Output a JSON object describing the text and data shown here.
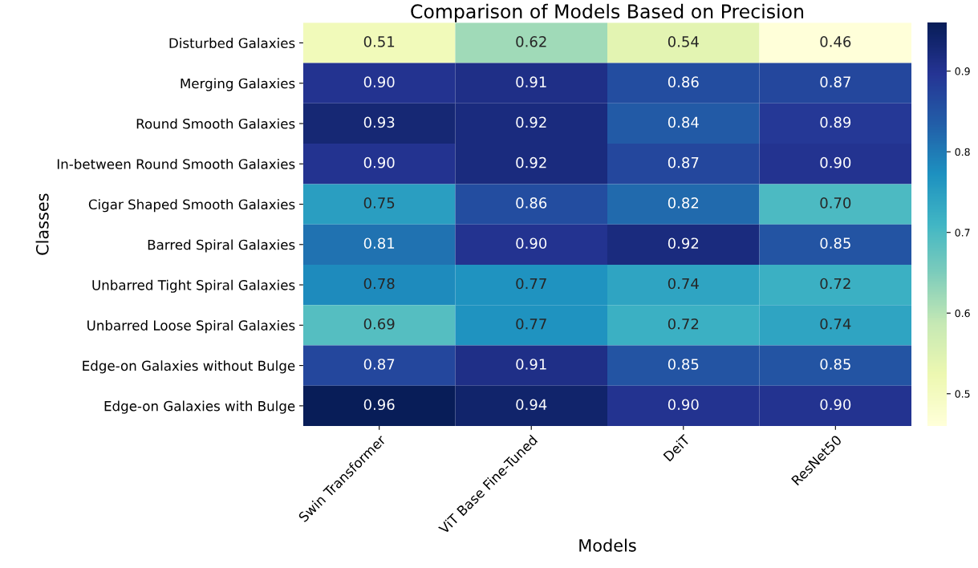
{
  "chart_data": {
    "type": "heatmap",
    "title": "Comparison of Models Based on Precision",
    "xlabel": "Models",
    "ylabel": "Classes",
    "categories": [
      "Swin Transformer",
      "ViT Base Fine-Tuned",
      "DeiT",
      "ResNet50"
    ],
    "y_categories": [
      "Disturbed Galaxies",
      "Merging Galaxies",
      "Round Smooth Galaxies",
      "In-between Round Smooth Galaxies",
      "Cigar Shaped Smooth Galaxies",
      "Barred Spiral Galaxies",
      "Unbarred Tight Spiral Galaxies",
      "Unbarred Loose Spiral Galaxies",
      "Edge-on Galaxies without Bulge",
      "Edge-on Galaxies with Bulge"
    ],
    "cells": [
      [
        0.51,
        0.62,
        0.54,
        0.46
      ],
      [
        0.9,
        0.91,
        0.86,
        0.87
      ],
      [
        0.93,
        0.92,
        0.84,
        0.89
      ],
      [
        0.9,
        0.92,
        0.87,
        0.9
      ],
      [
        0.75,
        0.86,
        0.82,
        0.7
      ],
      [
        0.81,
        0.9,
        0.92,
        0.85
      ],
      [
        0.78,
        0.77,
        0.74,
        0.72
      ],
      [
        0.69,
        0.77,
        0.72,
        0.74
      ],
      [
        0.87,
        0.91,
        0.85,
        0.85
      ],
      [
        0.96,
        0.94,
        0.9,
        0.9
      ]
    ],
    "cell_labels": [
      [
        "0.51",
        "0.62",
        "0.54",
        "0.46"
      ],
      [
        "0.90",
        "0.91",
        "0.86",
        "0.87"
      ],
      [
        "0.93",
        "0.92",
        "0.84",
        "0.89"
      ],
      [
        "0.90",
        "0.92",
        "0.87",
        "0.90"
      ],
      [
        "0.75",
        "0.86",
        "0.82",
        "0.70"
      ],
      [
        "0.81",
        "0.90",
        "0.92",
        "0.85"
      ],
      [
        "0.78",
        "0.77",
        "0.74",
        "0.72"
      ],
      [
        "0.69",
        "0.77",
        "0.72",
        "0.74"
      ],
      [
        "0.87",
        "0.91",
        "0.85",
        "0.85"
      ],
      [
        "0.96",
        "0.94",
        "0.90",
        "0.90"
      ]
    ],
    "clim": [
      0.46,
      0.96
    ],
    "cticks": [
      0.5,
      0.6,
      0.7,
      0.8,
      0.9
    ]
  }
}
